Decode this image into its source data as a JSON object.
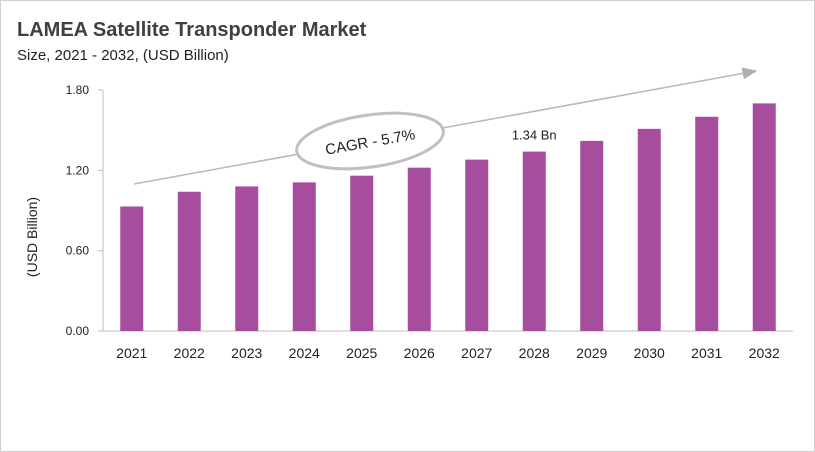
{
  "chart_data": {
    "type": "bar",
    "title": "LAMEA Satellite Transponder  Market",
    "subtitle": "Size, 2021 - 2032, (USD Billion)",
    "ylabel": "(USD Billion)",
    "xlabel": "",
    "categories": [
      "2021",
      "2022",
      "2023",
      "2024",
      "2025",
      "2026",
      "2027",
      "2028",
      "2029",
      "2030",
      "2031",
      "2032"
    ],
    "values": [
      0.93,
      1.04,
      1.08,
      1.11,
      1.16,
      1.22,
      1.28,
      1.34,
      1.42,
      1.51,
      1.6,
      1.7
    ],
    "ylim": [
      0,
      1.8
    ],
    "yticks": [
      "0.00",
      "0.60",
      "1.20",
      "1.80"
    ],
    "grid": false,
    "bar_color": "#a64d9e",
    "annotations": {
      "cagr": "CAGR - 5.7%",
      "value_label": "1.34 Bn",
      "value_label_category": "2028"
    }
  }
}
